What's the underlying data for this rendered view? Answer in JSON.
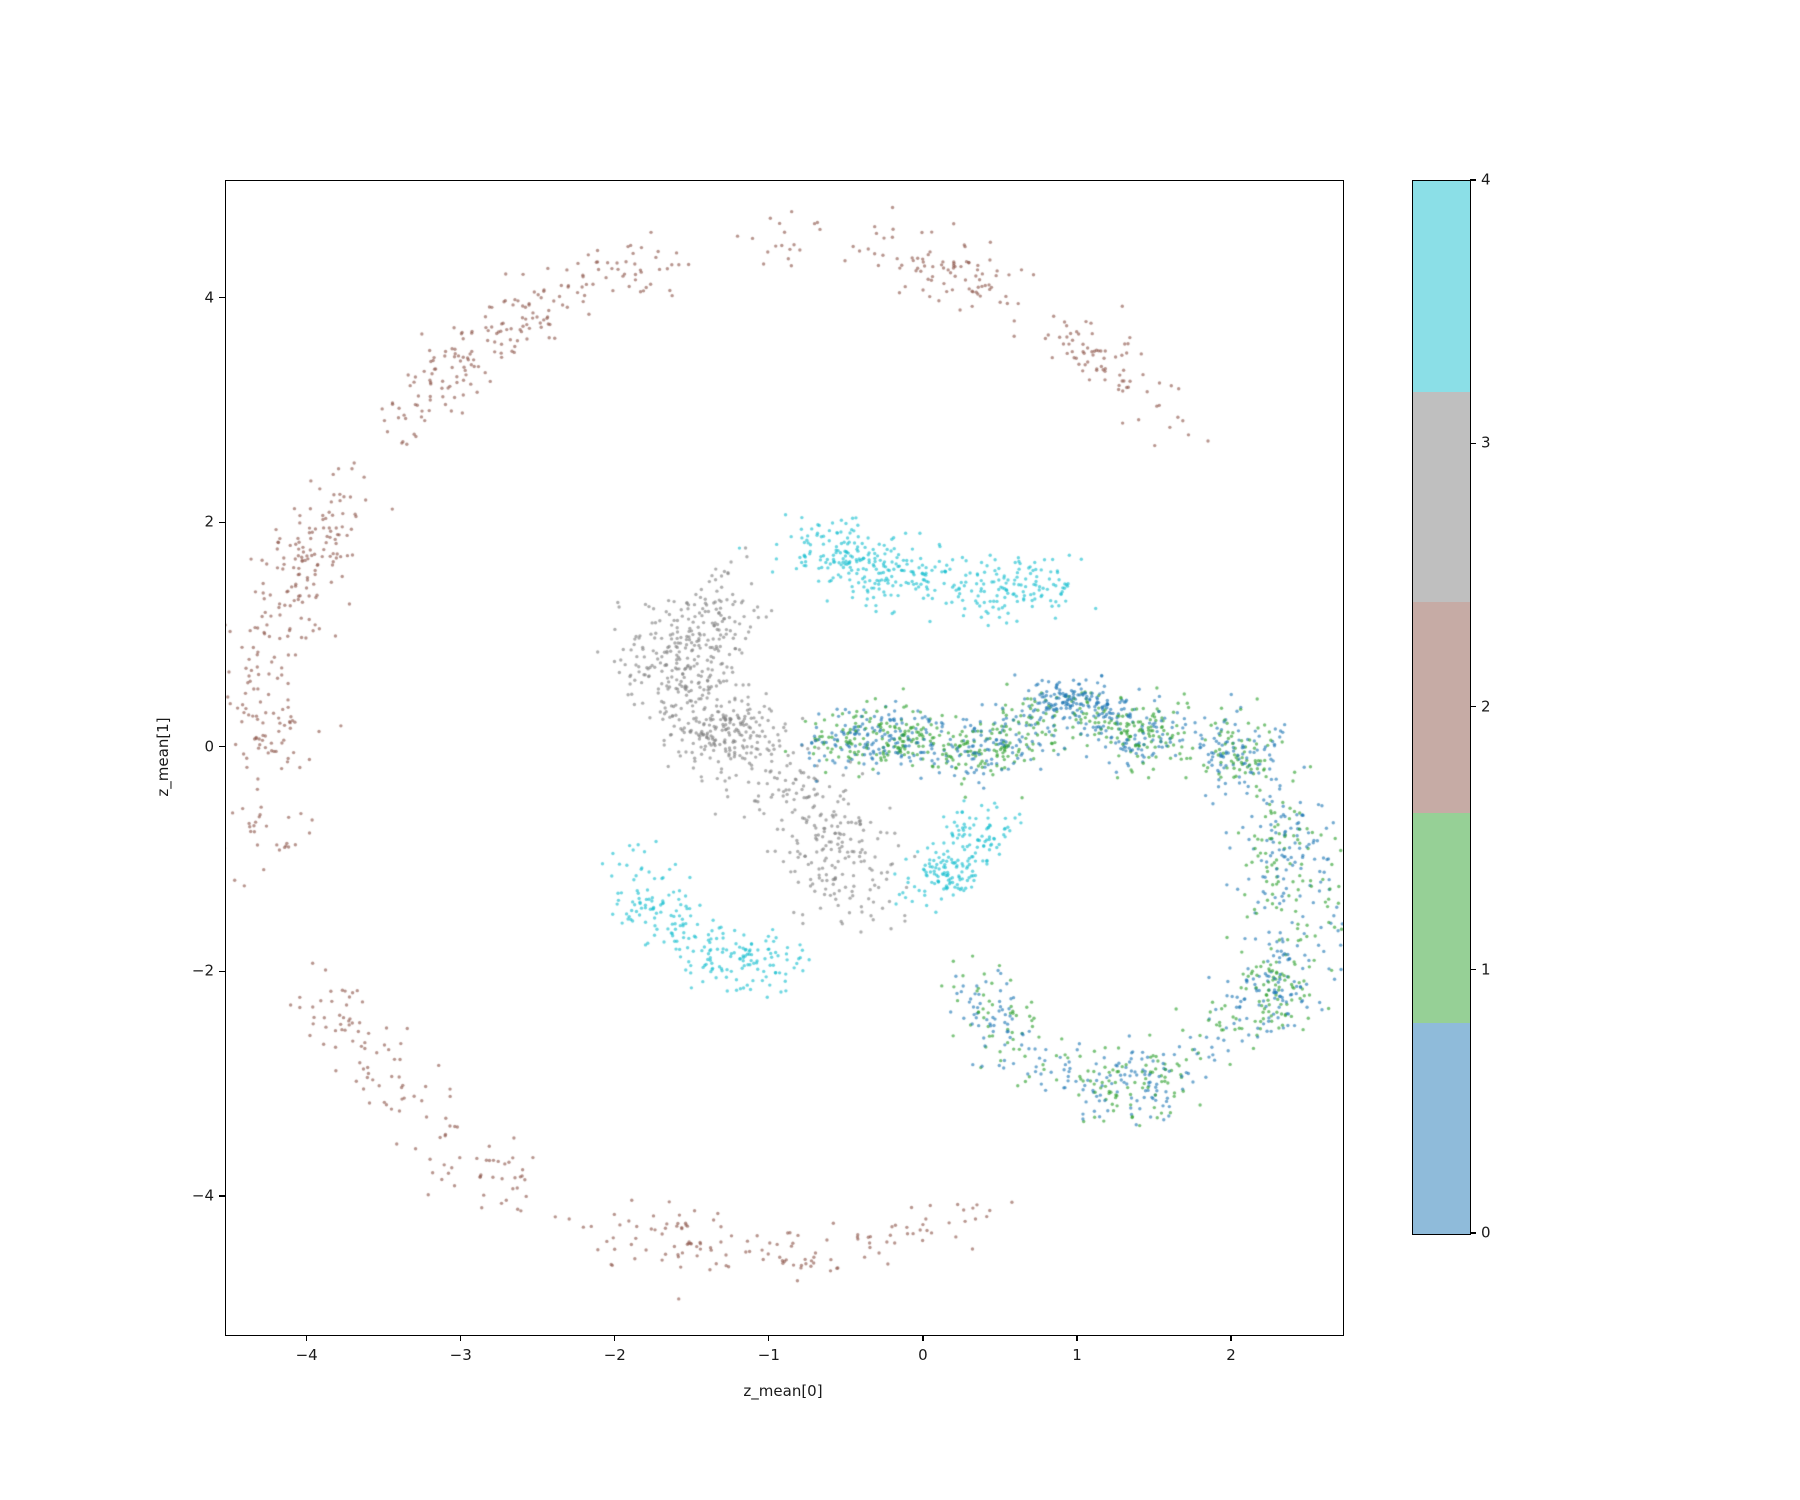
{
  "figure": {
    "background": "#ffffff",
    "kind": "matplotlib-scatter-figure"
  },
  "chart_data": {
    "type": "scatter",
    "title": "",
    "xlabel": "z_mean[0]",
    "ylabel": "z_mean[1]",
    "xlim": [
      -4.53,
      2.72
    ],
    "ylim": [
      -5.23,
      5.05
    ],
    "x_ticks": [
      -4,
      -3,
      -2,
      -1,
      0,
      1,
      2
    ],
    "y_ticks": [
      -4,
      -2,
      0,
      2,
      4
    ],
    "grid": false,
    "legend": "colorbar-right",
    "point_alpha": 0.62,
    "point_radius": 1.7,
    "seed": 42,
    "class_colors": {
      "0": "#1f77b4",
      "1": "#2ca02c",
      "2": "#8c564b",
      "3": "#7f7f7f",
      "4": "#17becf"
    },
    "clusters": [
      {
        "name": "outer-ring-class2",
        "class": 2,
        "type": "arc",
        "cx": -0.9,
        "cy": -0.05,
        "rx": 3.38,
        "ry": 4.5,
        "deg_start": 42,
        "deg_end": 290,
        "sigma": 0.13,
        "count": 880
      },
      {
        "name": "top-band-class4",
        "class": 4,
        "type": "polyline",
        "points": [
          [
            -0.95,
            1.82
          ],
          [
            -0.62,
            1.74
          ],
          [
            -0.3,
            1.56
          ],
          [
            0.05,
            1.5
          ],
          [
            0.35,
            1.36
          ],
          [
            0.6,
            1.4
          ],
          [
            0.78,
            1.46
          ]
        ],
        "sigma": 0.13,
        "count": 380
      },
      {
        "name": "small-blob-class4",
        "class": 4,
        "type": "polyline",
        "points": [
          [
            -0.02,
            -1.3
          ],
          [
            0.18,
            -1.0
          ],
          [
            0.42,
            -0.63
          ]
        ],
        "sigma": 0.1,
        "count": 210
      },
      {
        "name": "banana-class4",
        "class": 4,
        "type": "polyline",
        "points": [
          [
            -1.85,
            -1.02
          ],
          [
            -1.78,
            -1.38
          ],
          [
            -1.6,
            -1.68
          ],
          [
            -1.35,
            -1.9
          ],
          [
            -1.1,
            -1.88
          ],
          [
            -0.97,
            -1.74
          ]
        ],
        "sigma": 0.11,
        "count": 260
      },
      {
        "name": "s-band-class3",
        "class": 3,
        "type": "polyline",
        "points": [
          [
            -1.3,
            1.28
          ],
          [
            -1.52,
            0.95
          ],
          [
            -1.58,
            0.6
          ],
          [
            -1.44,
            0.36
          ],
          [
            -1.22,
            0.18
          ],
          [
            -1.07,
            -0.06
          ],
          [
            -0.93,
            -0.36
          ],
          [
            -0.73,
            -0.66
          ],
          [
            -0.58,
            -0.92
          ],
          [
            -0.5,
            -1.18
          ]
        ],
        "sigma": 0.17,
        "count": 760
      },
      {
        "name": "horizontal-band-class01",
        "classes": [
          [
            0,
            0.47
          ],
          [
            1,
            0.53
          ]
        ],
        "type": "polyline",
        "points": [
          [
            -0.62,
            0.04
          ],
          [
            -0.3,
            0.08
          ],
          [
            0.05,
            0.05
          ],
          [
            0.4,
            0.02
          ],
          [
            0.7,
            0.1
          ],
          [
            0.95,
            0.3
          ],
          [
            1.2,
            0.3
          ],
          [
            1.4,
            0.15
          ],
          [
            1.52,
            0.02
          ]
        ],
        "sigma": 0.12,
        "count": 850
      },
      {
        "name": "bump-class0",
        "class": 0,
        "type": "polyline",
        "points": [
          [
            0.8,
            0.38
          ],
          [
            1.0,
            0.45
          ],
          [
            1.15,
            0.4
          ]
        ],
        "sigma": 0.09,
        "count": 130
      },
      {
        "name": "right-ring-class01",
        "classes": [
          [
            0,
            0.55
          ],
          [
            1,
            0.45
          ]
        ],
        "type": "arc",
        "cx": 1.32,
        "cy": -1.3,
        "rx": 1.12,
        "ry": 1.68,
        "deg_start": -155,
        "deg_end": 75,
        "sigma": 0.14,
        "count": 950
      }
    ],
    "colorbar": {
      "tick_values": [
        4,
        3,
        2,
        1,
        0
      ],
      "segments_bottom_to_top": [
        {
          "class": 0,
          "color": "#8FBBDA"
        },
        {
          "class": 1,
          "color": "#96D096"
        },
        {
          "class": 2,
          "color": "#C6ABA5"
        },
        {
          "class": 3,
          "color": "#BFBFBF"
        },
        {
          "class": 4,
          "color": "#8BDFE7"
        }
      ]
    }
  }
}
